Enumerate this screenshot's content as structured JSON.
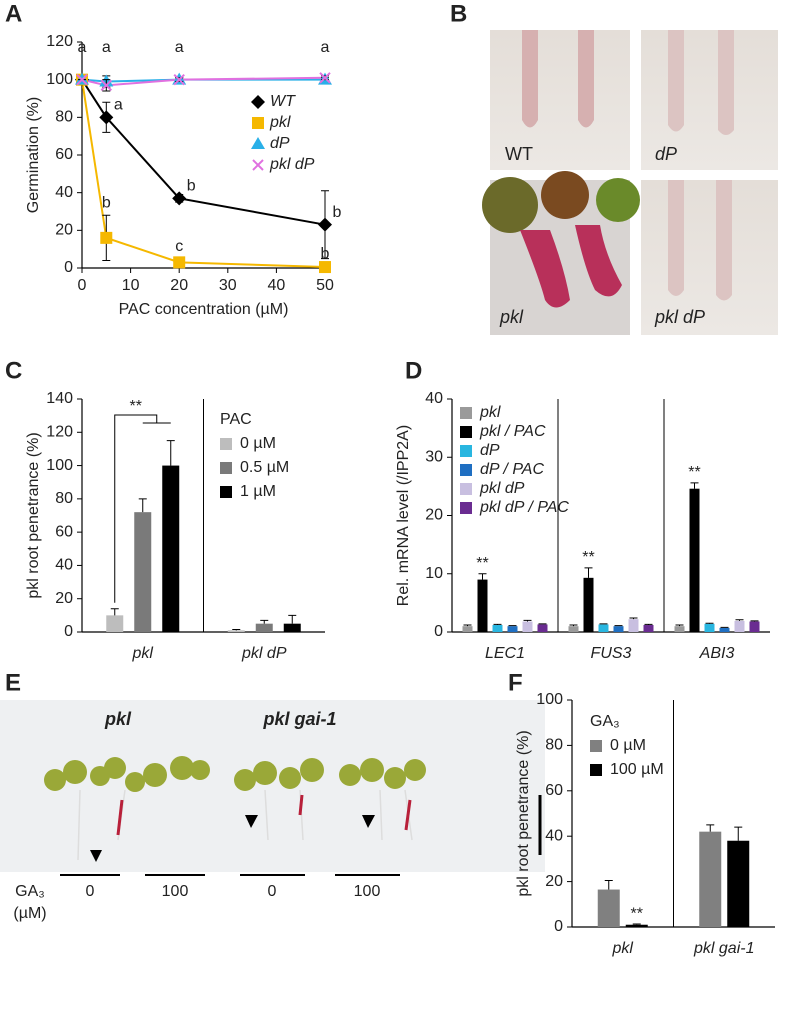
{
  "panel_labels": [
    "A",
    "B",
    "C",
    "D",
    "E",
    "F"
  ],
  "photo_B": {
    "labels": [
      "WT",
      "dP",
      "pkl",
      "pkl dP"
    ]
  },
  "photo_E": {
    "genotypes": [
      "pkl",
      "pkl gai-1"
    ],
    "treatment_label": [
      "GA₃",
      "(µM)"
    ],
    "doses": [
      0,
      100,
      0,
      100
    ]
  },
  "chart_data": [
    {
      "type": "line",
      "xlabel": "PAC concentration (µM)",
      "ylabel": "Germination (%)",
      "x": [
        0,
        5,
        20,
        50
      ],
      "xlim": [
        0,
        50
      ],
      "xticks": [
        0,
        10,
        20,
        30,
        40,
        50
      ],
      "ylim": [
        0,
        120
      ],
      "yticks": [
        0,
        20,
        40,
        60,
        80,
        100,
        120
      ],
      "series": [
        {
          "name": "WT",
          "color": "#000000",
          "marker": "diamond",
          "values": [
            100,
            80,
            37,
            23
          ],
          "errors": [
            0,
            8,
            2,
            18
          ],
          "point_labels": [
            null,
            "a",
            "b",
            "b"
          ]
        },
        {
          "name": "pkl",
          "color": "#f5b800",
          "marker": "square",
          "values": [
            100,
            16,
            3,
            0.5
          ],
          "errors": [
            0,
            12,
            2,
            0.5
          ],
          "point_labels": [
            null,
            "b",
            "c",
            "b"
          ]
        },
        {
          "name": "dP",
          "color": "#2ab0e8",
          "marker": "triangle",
          "values": [
            100,
            99,
            100,
            100
          ],
          "errors": [
            0,
            3,
            1,
            1
          ],
          "point_labels": [
            "a",
            "a",
            "a",
            "a"
          ]
        },
        {
          "name": "pkl dP",
          "color": "#e070e0",
          "marker": "x",
          "values": [
            100,
            97,
            100,
            101
          ],
          "errors": [
            0,
            3,
            1,
            1
          ]
        }
      ]
    },
    {
      "type": "bar",
      "ylabel": "pkl root penetrance (%)",
      "categories": [
        "pkl",
        "pkl dP"
      ],
      "ylim": [
        0,
        140
      ],
      "yticks": [
        0,
        20,
        40,
        60,
        80,
        100,
        120,
        140
      ],
      "legend_title": "PAC",
      "annotation": "**",
      "series": [
        {
          "name": "0 µM",
          "color": "#bdbdbd",
          "values": [
            10,
            1
          ],
          "errors": [
            4,
            0.5
          ]
        },
        {
          "name": "0.5 µM",
          "color": "#7a7a7a",
          "values": [
            72,
            5
          ],
          "errors": [
            8,
            2
          ]
        },
        {
          "name": "1 µM",
          "color": "#000000",
          "values": [
            100,
            5
          ],
          "errors": [
            15,
            5
          ]
        }
      ]
    },
    {
      "type": "bar",
      "ylabel": "Rel. mRNA level (/IPP2A)",
      "categories": [
        "LEC1",
        "FUS3",
        "ABI3"
      ],
      "ylim": [
        0,
        40
      ],
      "yticks": [
        0,
        10,
        20,
        30,
        40
      ],
      "series": [
        {
          "name": "pkl",
          "color": "#9a9a9a",
          "values": [
            1,
            1,
            1
          ],
          "errors": [
            0.2,
            0.2,
            0.2
          ]
        },
        {
          "name": "pkl / PAC",
          "color": "#000000",
          "values": [
            9,
            9.3,
            24.6
          ],
          "errors": [
            1,
            1.7,
            1
          ],
          "significance": [
            "**",
            "**",
            "**"
          ]
        },
        {
          "name": "dP",
          "color": "#29b6e0",
          "values": [
            1.2,
            1.3,
            1.4
          ],
          "errors": [
            0.1,
            0.1,
            0.1
          ]
        },
        {
          "name": "dP / PAC",
          "color": "#1f6fc2",
          "values": [
            1,
            1,
            0.7
          ],
          "errors": [
            0.1,
            0.1,
            0.1
          ]
        },
        {
          "name": "pkl dP",
          "color": "#c8bfe0",
          "values": [
            1.8,
            2.2,
            1.9
          ],
          "errors": [
            0.2,
            0.2,
            0.2
          ]
        },
        {
          "name": "pkl dP / PAC",
          "color": "#6a2c91",
          "values": [
            1.3,
            1.2,
            1.8
          ],
          "errors": [
            0.1,
            0.1,
            0.1
          ]
        }
      ]
    },
    {
      "type": "bar",
      "ylabel": "pkl root penetrance (%)",
      "categories": [
        "pkl",
        "pkl gai-1"
      ],
      "ylim": [
        0,
        100
      ],
      "yticks": [
        0,
        20,
        40,
        60,
        80,
        100
      ],
      "legend_title": "GA₃",
      "series": [
        {
          "name": "0 µM",
          "color": "#808080",
          "values": [
            16.5,
            42
          ],
          "errors": [
            4,
            3
          ]
        },
        {
          "name": "100 µM",
          "color": "#000000",
          "values": [
            1,
            38
          ],
          "errors": [
            0.3,
            6
          ],
          "significance": [
            "**",
            null
          ]
        }
      ]
    }
  ]
}
